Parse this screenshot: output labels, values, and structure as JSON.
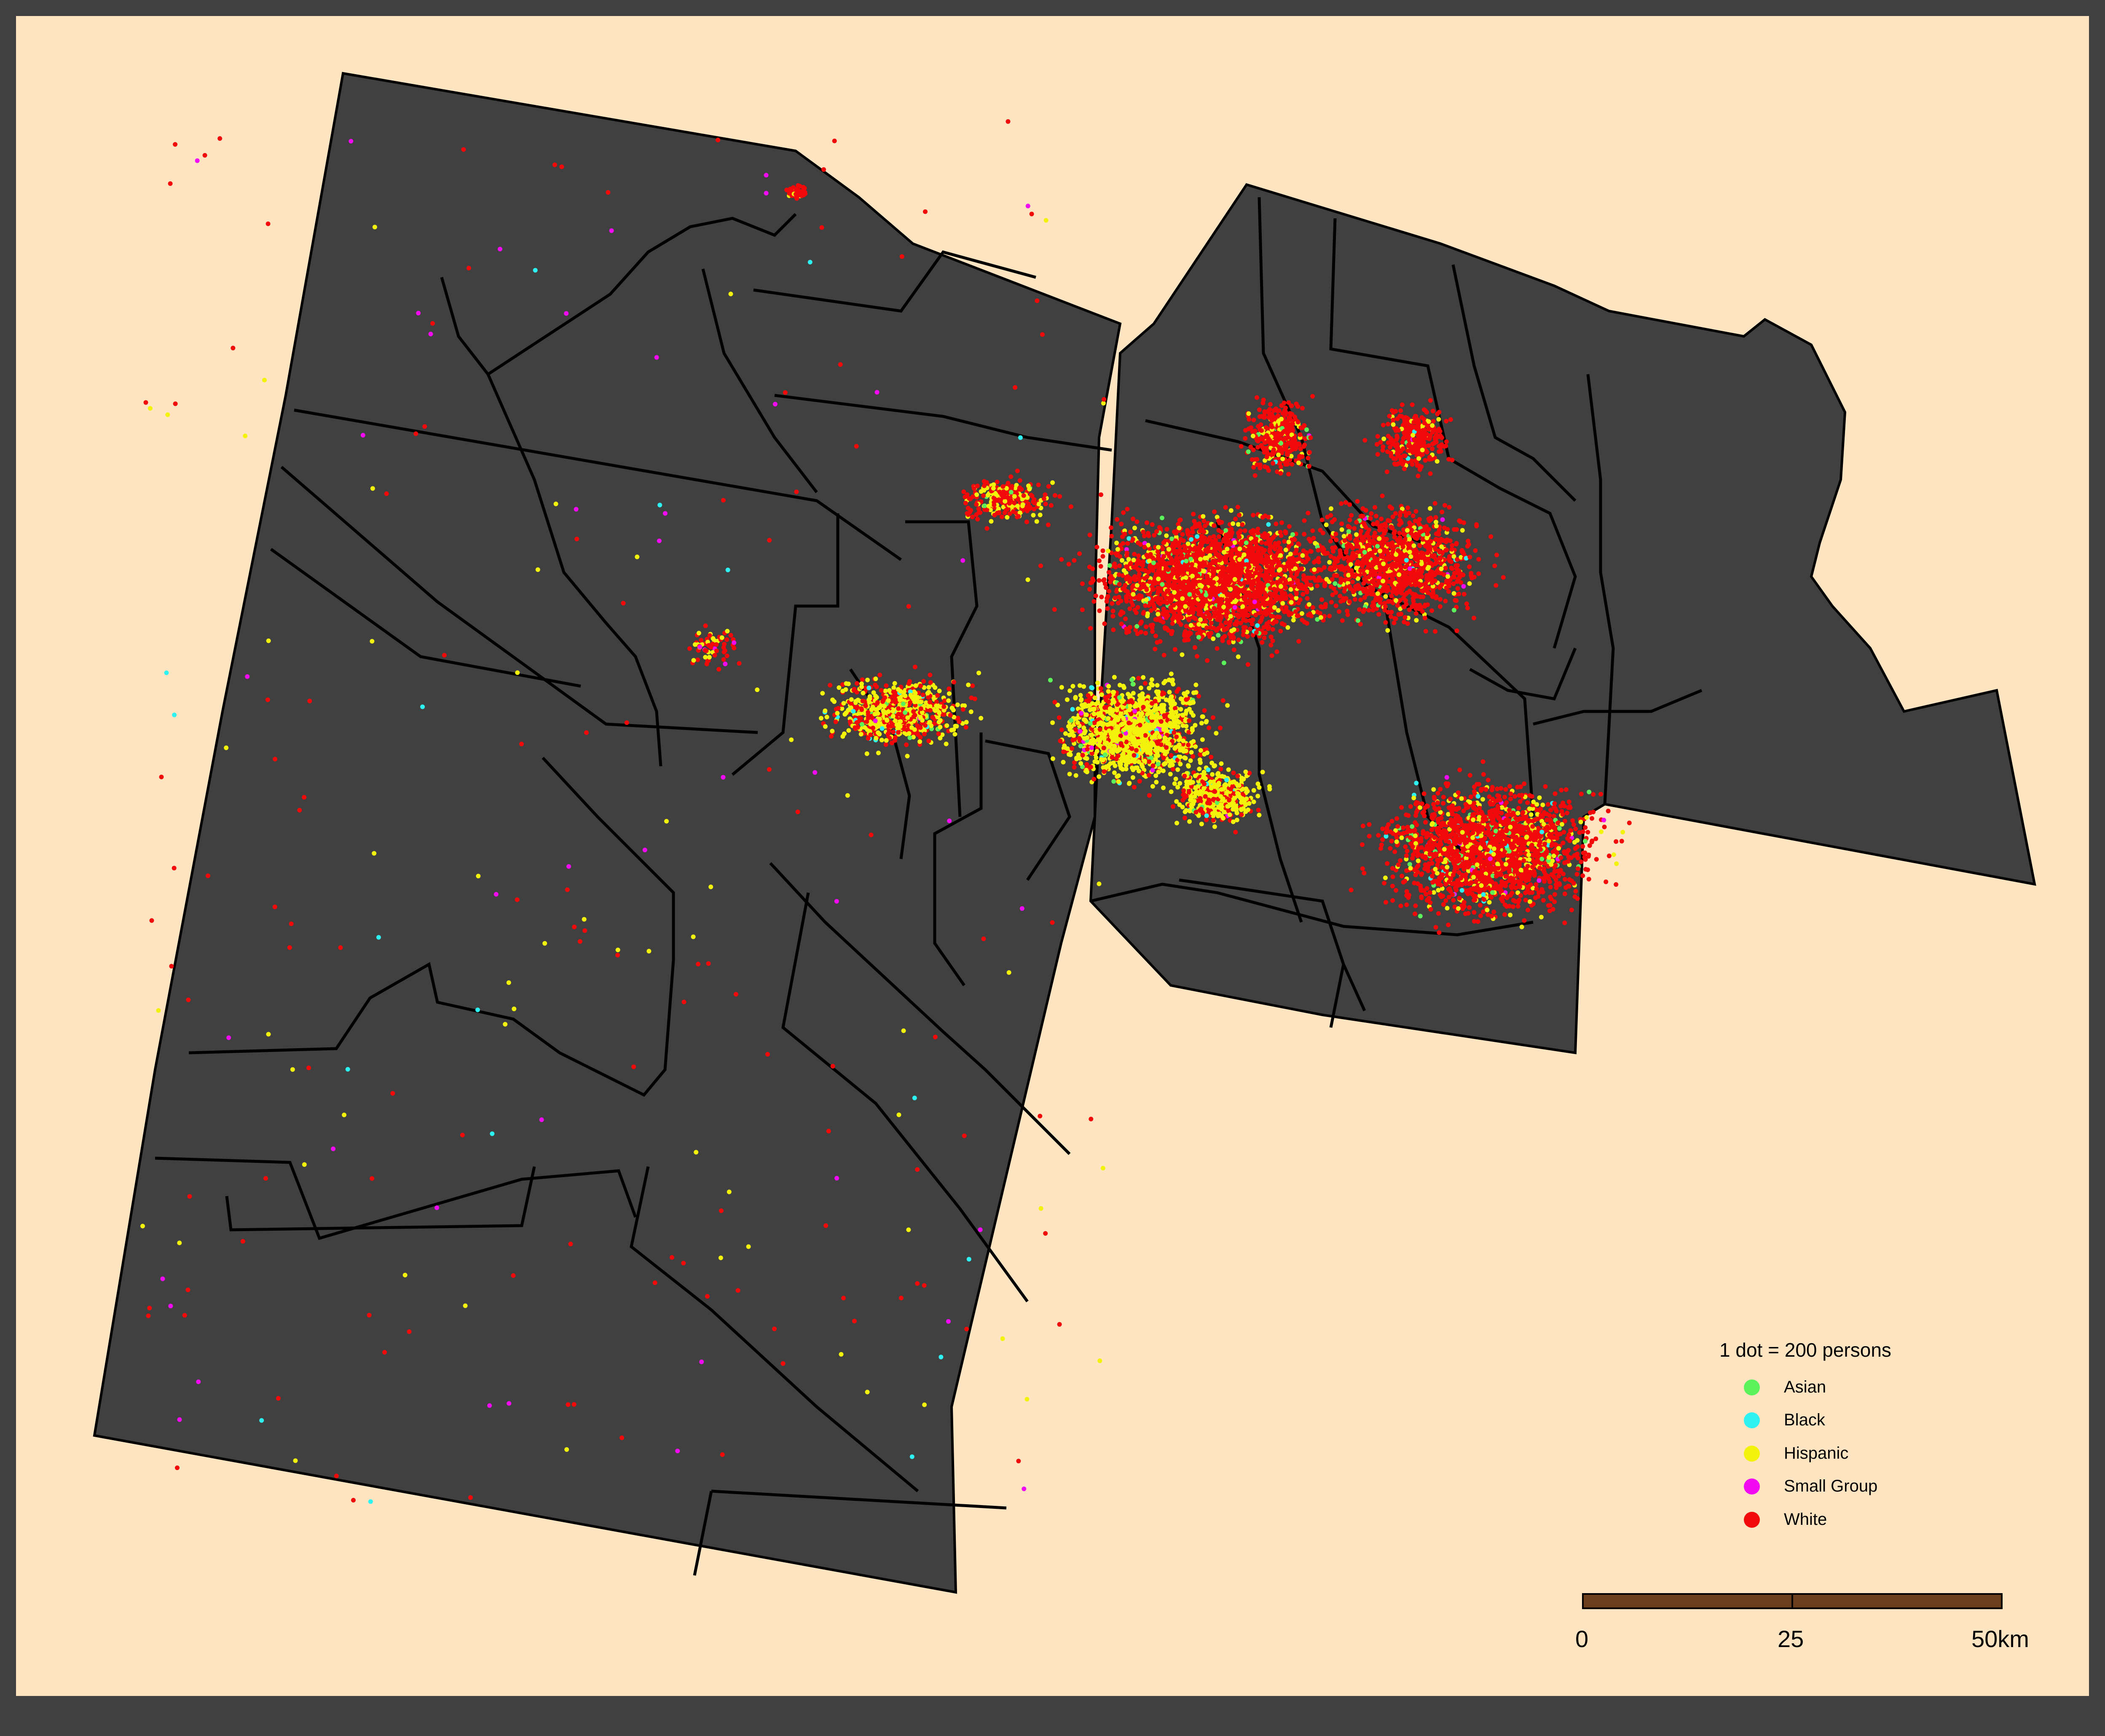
{
  "map": {
    "colors": {
      "frame": "#404040",
      "background": "#ffe4c2",
      "land": "#404040",
      "boundary": "#000000",
      "scalebar": "#6b3f1c"
    }
  },
  "legend": {
    "title": "1 dot = 200 persons",
    "items": [
      {
        "label": "Asian",
        "color": "#5cf25c"
      },
      {
        "label": "Black",
        "color": "#2ef2f2"
      },
      {
        "label": "Hispanic",
        "color": "#f2f20a"
      },
      {
        "label": "Small Group",
        "color": "#f20af2"
      },
      {
        "label": "White",
        "color": "#f20a0a"
      }
    ]
  },
  "scalebar": {
    "tick_0": "0",
    "tick_1": "25",
    "tick_2": "50km"
  }
}
